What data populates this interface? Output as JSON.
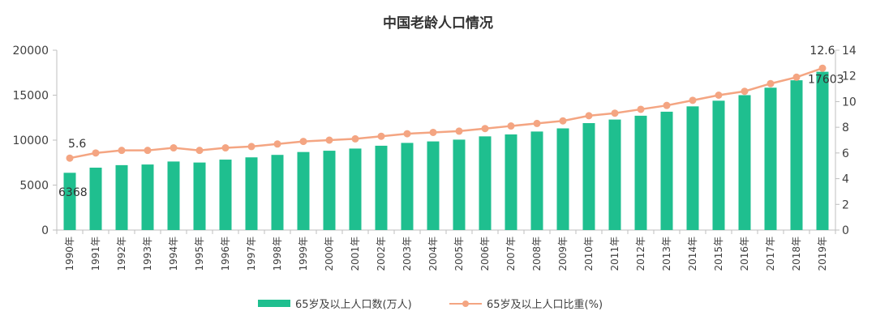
{
  "chart_data": {
    "type": "bar",
    "title": "中国老龄人口情况",
    "categories": [
      "1990年",
      "1991年",
      "1992年",
      "1993年",
      "1994年",
      "1995年",
      "1996年",
      "1997年",
      "1998年",
      "1999年",
      "2000年",
      "2001年",
      "2002年",
      "2003年",
      "2004年",
      "2005年",
      "2006年",
      "2007年",
      "2008年",
      "2009年",
      "2010年",
      "2011年",
      "2012年",
      "2013年",
      "2014年",
      "2015年",
      "2016年",
      "2017年",
      "2018年",
      "2019年"
    ],
    "series": [
      {
        "name": "65岁及以上人口数(万人)",
        "type": "bar",
        "axis": "left",
        "color": "#1fbf8f",
        "values": [
          6368,
          6938,
          7218,
          7289,
          7622,
          7510,
          7833,
          8085,
          8359,
          8679,
          8821,
          9062,
          9377,
          9692,
          9857,
          10055,
          10419,
          10636,
          10956,
          11307,
          11894,
          12288,
          12714,
          13161,
          13755,
          14386,
          15003,
          15831,
          16658,
          17603
        ]
      },
      {
        "name": "65岁及以上人口比重(%)",
        "type": "line",
        "axis": "right",
        "color": "#f4a582",
        "values": [
          5.6,
          6.0,
          6.2,
          6.2,
          6.4,
          6.2,
          6.4,
          6.5,
          6.7,
          6.9,
          7.0,
          7.1,
          7.3,
          7.5,
          7.6,
          7.7,
          7.9,
          8.1,
          8.3,
          8.5,
          8.9,
          9.1,
          9.4,
          9.7,
          10.1,
          10.5,
          10.8,
          11.4,
          11.9,
          12.6
        ]
      }
    ],
    "y_left": {
      "ylim": [
        0,
        20000
      ],
      "ticks": [
        "0",
        "5000",
        "10000",
        "15000",
        "20000"
      ]
    },
    "y_right": {
      "ylim": [
        0,
        14
      ],
      "ticks": [
        "0",
        "2",
        "4",
        "6",
        "8",
        "10",
        "12",
        "14"
      ]
    },
    "data_labels": [
      {
        "series": 0,
        "index": 0,
        "text": "6368"
      },
      {
        "series": 1,
        "index": 0,
        "text": "5.6"
      },
      {
        "series": 0,
        "index": 29,
        "text": "17603"
      },
      {
        "series": 1,
        "index": 29,
        "text": "12.6"
      }
    ],
    "legend_position": "bottom",
    "grid": false
  }
}
